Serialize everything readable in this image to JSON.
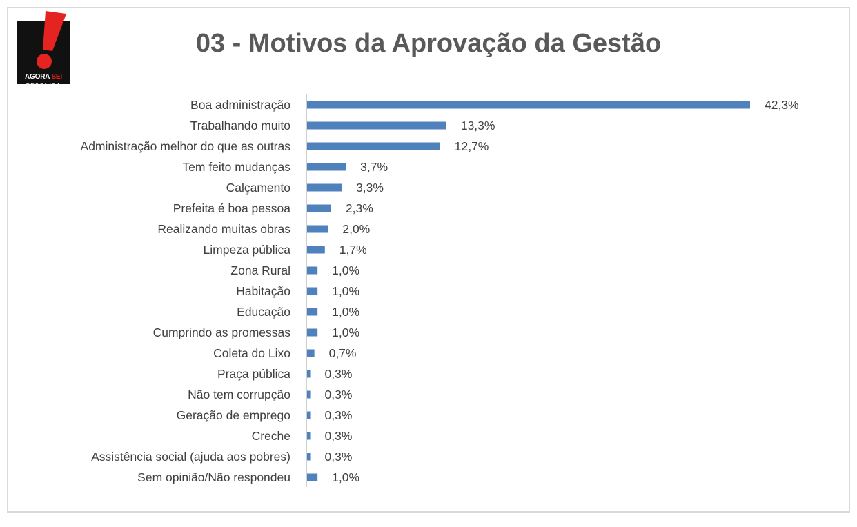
{
  "logo": {
    "line1_a": "AGORA ",
    "line1_b": "SEI",
    "line2": "PESQUISA"
  },
  "colors": {
    "bar": "#4f81bd",
    "axis": "#bfbfbf",
    "logo_red": "#e52421",
    "logo_black": "#111111",
    "title": "#595959"
  },
  "chart_data": {
    "type": "bar",
    "orientation": "horizontal",
    "title": "03 - Motivos da Aprovação da Gestão",
    "xlabel": "",
    "ylabel": "",
    "grid": false,
    "legend": "none",
    "xlim": [
      0,
      42.3
    ],
    "categories": [
      "Boa administração",
      "Trabalhando muito",
      "Administração melhor do que as outras",
      "Tem feito mudanças",
      "Calçamento",
      "Prefeita é boa pessoa",
      "Realizando muitas obras",
      "Limpeza pública",
      "Zona Rural",
      "Habitação",
      "Educação",
      "Cumprindo as promessas",
      "Coleta do Lixo",
      "Praça pública",
      "Não tem corrupção",
      "Geração de emprego",
      "Creche",
      "Assistência social (ajuda aos pobres)",
      "Sem opinião/Não respondeu"
    ],
    "values": [
      42.3,
      13.3,
      12.7,
      3.7,
      3.3,
      2.3,
      2.0,
      1.7,
      1.0,
      1.0,
      1.0,
      1.0,
      0.7,
      0.3,
      0.3,
      0.3,
      0.3,
      0.3,
      1.0
    ],
    "value_labels": [
      "42,3%",
      "13,3%",
      "12,7%",
      "3,7%",
      "3,3%",
      "2,3%",
      "2,0%",
      "1,7%",
      "1,0%",
      "1,0%",
      "1,0%",
      "1,0%",
      "0,7%",
      "0,3%",
      "0,3%",
      "0,3%",
      "0,3%",
      "0,3%",
      "1,0%"
    ]
  }
}
